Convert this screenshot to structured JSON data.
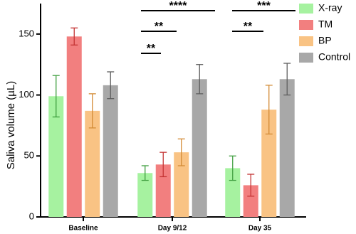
{
  "chart_data": {
    "type": "bar",
    "y_label": "Saliva volume (µL)",
    "categories": [
      "Baseline",
      "Day 9/12",
      "Day 35"
    ],
    "series": [
      {
        "name": "X-ray",
        "color": "#a6f2a0",
        "error_color": "#3f9e3f",
        "values": [
          99,
          36,
          40
        ],
        "errors": [
          17,
          6,
          10
        ]
      },
      {
        "name": "TM",
        "color": "#f27f7f",
        "error_color": "#c43434",
        "values": [
          148,
          43,
          26
        ],
        "errors": [
          7,
          10,
          9
        ]
      },
      {
        "name": "BP",
        "color": "#f9c384",
        "error_color": "#d38b35",
        "values": [
          87,
          53,
          88
        ],
        "errors": [
          14,
          11,
          20
        ]
      },
      {
        "name": "Control",
        "color": "#a8a8a8",
        "error_color": "#5e5e5e",
        "values": [
          108,
          113,
          113
        ],
        "errors": [
          11,
          12,
          13
        ]
      }
    ],
    "ylim": [
      0,
      175
    ],
    "yticks": [
      0,
      50,
      100,
      150
    ],
    "annotations": [
      "****",
      "**",
      "**",
      "***",
      "**"
    ]
  }
}
